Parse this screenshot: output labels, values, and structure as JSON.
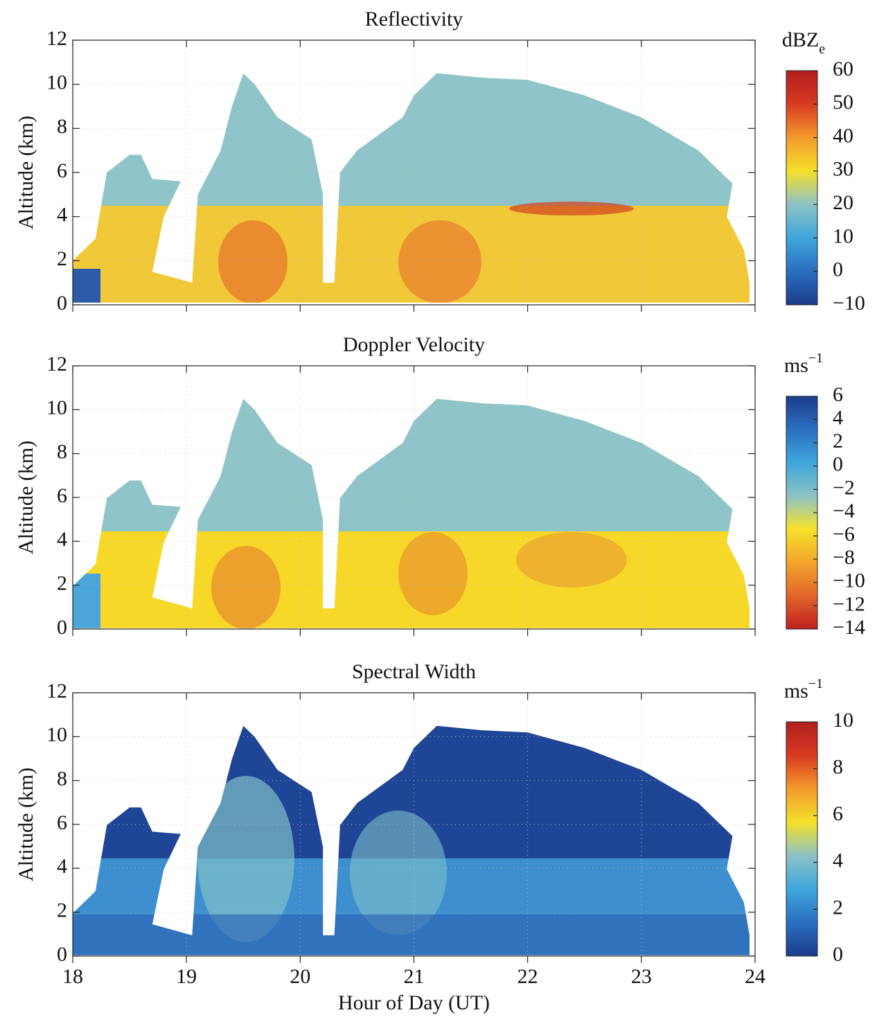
{
  "chart_data": [
    {
      "type": "heatmap",
      "title": "Reflectivity",
      "ylabel": "Altitude (km)",
      "xlim": [
        18,
        24
      ],
      "xticks": [
        18,
        19,
        20,
        21,
        22,
        23,
        24
      ],
      "show_xtick_labels": false,
      "ylim": [
        0,
        12
      ],
      "yticks": [
        0,
        2,
        4,
        6,
        8,
        10,
        12
      ],
      "grid": true,
      "colorbar_label": "dBZ",
      "colorbar_label_subscript": "e",
      "clim": [
        -10,
        60
      ],
      "cticks": [
        {
          "value": -10,
          "label": "−10"
        },
        0,
        10,
        20,
        30,
        40,
        50,
        60
      ],
      "colormap": [
        "#1c3c8c",
        "#2a6fc0",
        "#3fa6dc",
        "#8cc3c4",
        "#f5e02a",
        "#f39a2c",
        "#d93a20",
        "#b01e1e"
      ]
    },
    {
      "type": "heatmap",
      "title": "Doppler Velocity",
      "ylabel": "Altitude (km)",
      "xlim": [
        18,
        24
      ],
      "xticks": [
        18,
        19,
        20,
        21,
        22,
        23,
        24
      ],
      "show_xtick_labels": false,
      "ylim": [
        0,
        12
      ],
      "yticks": [
        0,
        2,
        4,
        6,
        8,
        10,
        12
      ],
      "grid": true,
      "colorbar_label": "ms",
      "colorbar_label_superscript": "−1",
      "clim": [
        -14,
        6
      ],
      "cticks": [
        {
          "value": -14,
          "label": "−14"
        },
        {
          "value": -12,
          "label": "−12"
        },
        {
          "value": -10,
          "label": "−10"
        },
        {
          "value": -8,
          "label": "−8"
        },
        {
          "value": -6,
          "label": "−6"
        },
        {
          "value": -4,
          "label": "−4"
        },
        {
          "value": -2,
          "label": "−2"
        },
        0,
        2,
        4,
        6
      ],
      "colormap": [
        "#c0201e",
        "#e2652a",
        "#f2a52c",
        "#f7e12a",
        "#8cc3c4",
        "#3fa6dc",
        "#2a6fc0",
        "#1c3c8c"
      ]
    },
    {
      "type": "heatmap",
      "title": "Spectral Width",
      "ylabel": "Altitude (km)",
      "xlabel": "Hour of Day (UT)",
      "xlim": [
        18,
        24
      ],
      "xticks": [
        18,
        19,
        20,
        21,
        22,
        23,
        24
      ],
      "show_xtick_labels": true,
      "ylim": [
        0,
        12
      ],
      "yticks": [
        0,
        2,
        4,
        6,
        8,
        10,
        12
      ],
      "grid": true,
      "colorbar_label": "ms",
      "colorbar_label_superscript": "−1",
      "clim": [
        0,
        10
      ],
      "cticks": [
        0,
        2,
        4,
        6,
        8,
        10
      ],
      "colormap": [
        "#1c3c8c",
        "#2a6fc0",
        "#3fa6dc",
        "#8cc3c4",
        "#f5e02a",
        "#f39a2c",
        "#d93a20",
        "#b01e1e"
      ]
    }
  ]
}
